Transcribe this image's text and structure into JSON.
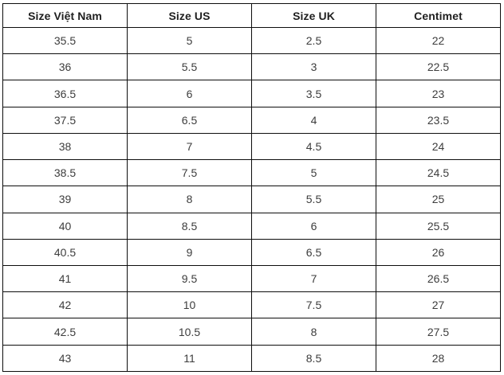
{
  "table": {
    "name": "shoe-size-conversion",
    "headers": [
      "Size Việt Nam",
      "Size US",
      "Size UK",
      "Centimet"
    ],
    "rows": [
      [
        "35.5",
        "5",
        "2.5",
        "22"
      ],
      [
        "36",
        "5.5",
        "3",
        "22.5"
      ],
      [
        "36.5",
        "6",
        "3.5",
        "23"
      ],
      [
        "37.5",
        "6.5",
        "4",
        "23.5"
      ],
      [
        "38",
        "7",
        "4.5",
        "24"
      ],
      [
        "38.5",
        "7.5",
        "5",
        "24.5"
      ],
      [
        "39",
        "8",
        "5.5",
        "25"
      ],
      [
        "40",
        "8.5",
        "6",
        "25.5"
      ],
      [
        "40.5",
        "9",
        "6.5",
        "26"
      ],
      [
        "41",
        "9.5",
        "7",
        "26.5"
      ],
      [
        "42",
        "10",
        "7.5",
        "27"
      ],
      [
        "42.5",
        "10.5",
        "8",
        "27.5"
      ],
      [
        "43",
        "11",
        "8.5",
        "28"
      ]
    ],
    "colors": {
      "border": "#0d0d0d",
      "header_text": "#1f1f1f",
      "cell_text": "#3d3d3d",
      "background": "#ffffff"
    }
  }
}
